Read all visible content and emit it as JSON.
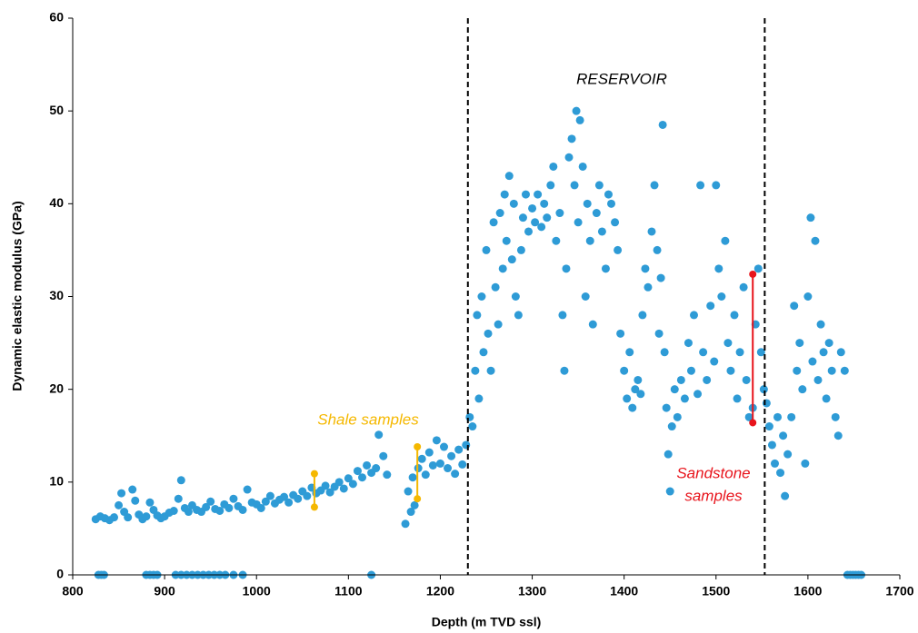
{
  "chart_data": {
    "type": "scatter",
    "x_label": "Depth (m TVD ssl)",
    "y_label": "Dynamic elastic modulus (GPa)",
    "xlim": [
      800,
      1700
    ],
    "ylim": [
      0,
      60
    ],
    "xticks": [
      800,
      900,
      1000,
      1100,
      1200,
      1300,
      1400,
      1500,
      1600,
      1700
    ],
    "yticks": [
      0,
      10,
      20,
      30,
      40,
      50,
      60
    ],
    "x": [
      825,
      830,
      835,
      840,
      845,
      850,
      853,
      856,
      860,
      865,
      868,
      872,
      876,
      880,
      884,
      888,
      892,
      896,
      900,
      905,
      910,
      915,
      918,
      922,
      926,
      930,
      935,
      940,
      945,
      950,
      955,
      960,
      965,
      970,
      975,
      980,
      985,
      990,
      995,
      1000,
      1005,
      1010,
      1015,
      1020,
      1025,
      1030,
      1035,
      1040,
      1045,
      1050,
      1055,
      1060,
      1065,
      1070,
      1075,
      1080,
      1085,
      1090,
      1095,
      1100,
      1105,
      1110,
      1115,
      1120,
      1125,
      1130,
      1133,
      1138,
      1142,
      1162,
      1165,
      1168,
      1170,
      1172,
      1176,
      1180,
      1184,
      1188,
      1192,
      1196,
      1200,
      1204,
      1208,
      1212,
      1216,
      1220,
      1224,
      1228,
      1232,
      1235,
      1238,
      1240,
      1242,
      1245,
      1247,
      1250,
      1252,
      1255,
      1258,
      1260,
      1263,
      1265,
      1268,
      1270,
      1272,
      1275,
      1278,
      1280,
      1282,
      1285,
      1288,
      1290,
      1293,
      1296,
      1300,
      1303,
      1306,
      1310,
      1313,
      1316,
      1320,
      1323,
      1326,
      1330,
      1333,
      1335,
      1337,
      1340,
      1343,
      1346,
      1348,
      1350,
      1352,
      1355,
      1358,
      1360,
      1363,
      1366,
      1370,
      1373,
      1376,
      1380,
      1383,
      1386,
      1390,
      1393,
      1396,
      1400,
      1403,
      1406,
      1409,
      1412,
      1415,
      1418,
      1420,
      1423,
      1426,
      1430,
      1433,
      1436,
      1438,
      1440,
      1442,
      1444,
      1446,
      1448,
      1450,
      1452,
      1455,
      1458,
      1462,
      1466,
      1470,
      1473,
      1476,
      1480,
      1483,
      1486,
      1490,
      1494,
      1498,
      1500,
      1503,
      1506,
      1510,
      1513,
      1516,
      1520,
      1523,
      1526,
      1530,
      1533,
      1536,
      1540,
      1543,
      1546,
      1549,
      1552,
      1555,
      1558,
      1561,
      1564,
      1567,
      1570,
      1573,
      1575,
      1578,
      1582,
      1585,
      1588,
      1591,
      1594,
      1597,
      1600,
      1603,
      1605,
      1608,
      1611,
      1614,
      1617,
      1620,
      1623,
      1626,
      1630,
      1633,
      1636,
      1640,
      828,
      831,
      834,
      880,
      884,
      888,
      892,
      912,
      918,
      924,
      930,
      936,
      942,
      948,
      954,
      960,
      966,
      975,
      985,
      1125,
      1643,
      1646,
      1649,
      1652,
      1655,
      1658
    ],
    "series": [
      {
        "color": "#2e9bd6",
        "values": [
          6.0,
          6.3,
          6.1,
          5.9,
          6.2,
          7.5,
          8.8,
          6.8,
          6.2,
          9.2,
          8.0,
          6.5,
          6.0,
          6.3,
          7.8,
          7.0,
          6.4,
          6.1,
          6.3,
          6.7,
          6.9,
          8.2,
          10.2,
          7.2,
          6.8,
          7.5,
          7.0,
          6.8,
          7.3,
          7.9,
          7.1,
          6.9,
          7.6,
          7.2,
          8.2,
          7.4,
          7.0,
          9.2,
          7.8,
          7.6,
          7.2,
          7.9,
          8.5,
          7.7,
          8.1,
          8.4,
          7.8,
          8.6,
          8.2,
          9.0,
          8.5,
          9.4,
          8.8,
          9.1,
          9.6,
          8.9,
          9.5,
          10.0,
          9.3,
          10.4,
          9.8,
          11.2,
          10.5,
          11.8,
          11.0,
          11.5,
          15.1,
          12.8,
          10.8,
          5.5,
          9.0,
          6.8,
          10.5,
          7.5,
          11.5,
          12.5,
          10.8,
          13.2,
          11.8,
          14.5,
          12.0,
          13.8,
          11.5,
          12.8,
          10.9,
          13.5,
          11.9,
          14.0,
          17.0,
          16.0,
          22.0,
          28.0,
          19.0,
          30.0,
          24.0,
          35.0,
          26.0,
          22.0,
          38.0,
          31.0,
          27.0,
          39.0,
          33.0,
          41.0,
          36.0,
          43.0,
          34.0,
          40.0,
          30.0,
          28.0,
          35.0,
          38.5,
          41.0,
          37.0,
          39.5,
          38.0,
          41.0,
          37.5,
          40.0,
          38.5,
          42.0,
          44.0,
          36.0,
          39.0,
          28.0,
          22.0,
          33.0,
          45.0,
          47.0,
          42.0,
          50.0,
          38.0,
          49.0,
          44.0,
          30.0,
          40.0,
          36.0,
          27.0,
          39.0,
          42.0,
          37.0,
          33.0,
          41.0,
          40.0,
          38.0,
          35.0,
          26.0,
          22.0,
          19.0,
          24.0,
          18.0,
          20.0,
          21.0,
          19.5,
          28.0,
          33.0,
          31.0,
          37.0,
          42.0,
          35.0,
          26.0,
          32.0,
          48.5,
          24.0,
          18.0,
          13.0,
          9.0,
          16.0,
          20.0,
          17.0,
          21.0,
          19.0,
          25.0,
          22.0,
          28.0,
          19.5,
          42.0,
          24.0,
          21.0,
          29.0,
          23.0,
          42.0,
          33.0,
          30.0,
          36.0,
          25.0,
          22.0,
          28.0,
          19.0,
          24.0,
          31.0,
          21.0,
          17.0,
          18.0,
          27.0,
          33.0,
          24.0,
          20.0,
          18.5,
          16.0,
          14.0,
          12.0,
          17.0,
          11.0,
          15.0,
          8.5,
          13.0,
          17.0,
          29.0,
          22.0,
          25.0,
          20.0,
          12.0,
          30.0,
          38.5,
          23.0,
          36.0,
          21.0,
          27.0,
          24.0,
          19.0,
          25.0,
          22.0,
          17.0,
          15.0,
          24.0,
          22.0,
          0,
          0,
          0,
          0,
          0,
          0,
          0,
          0,
          0,
          0,
          0,
          0,
          0,
          0,
          0,
          0,
          0,
          0,
          0,
          0,
          0,
          0,
          0,
          0,
          0,
          0
        ]
      }
    ],
    "reservoir_bounds": [
      1230,
      1553
    ],
    "sample_ranges": [
      {
        "x": 1063,
        "low": 7.3,
        "high": 10.9,
        "color": "#f5b800"
      },
      {
        "x": 1175,
        "low": 8.2,
        "high": 13.8,
        "color": "#f5b800"
      },
      {
        "x": 1540,
        "low": 16.4,
        "high": 32.4,
        "color": "#e8141c"
      }
    ],
    "annotations": {
      "reservoir": "RESERVOIR",
      "shale": "Shale samples",
      "shale_color": "#f5b800",
      "sandstone": [
        "Sandstone",
        "samples"
      ],
      "sandstone_color": "#e8141c"
    }
  }
}
